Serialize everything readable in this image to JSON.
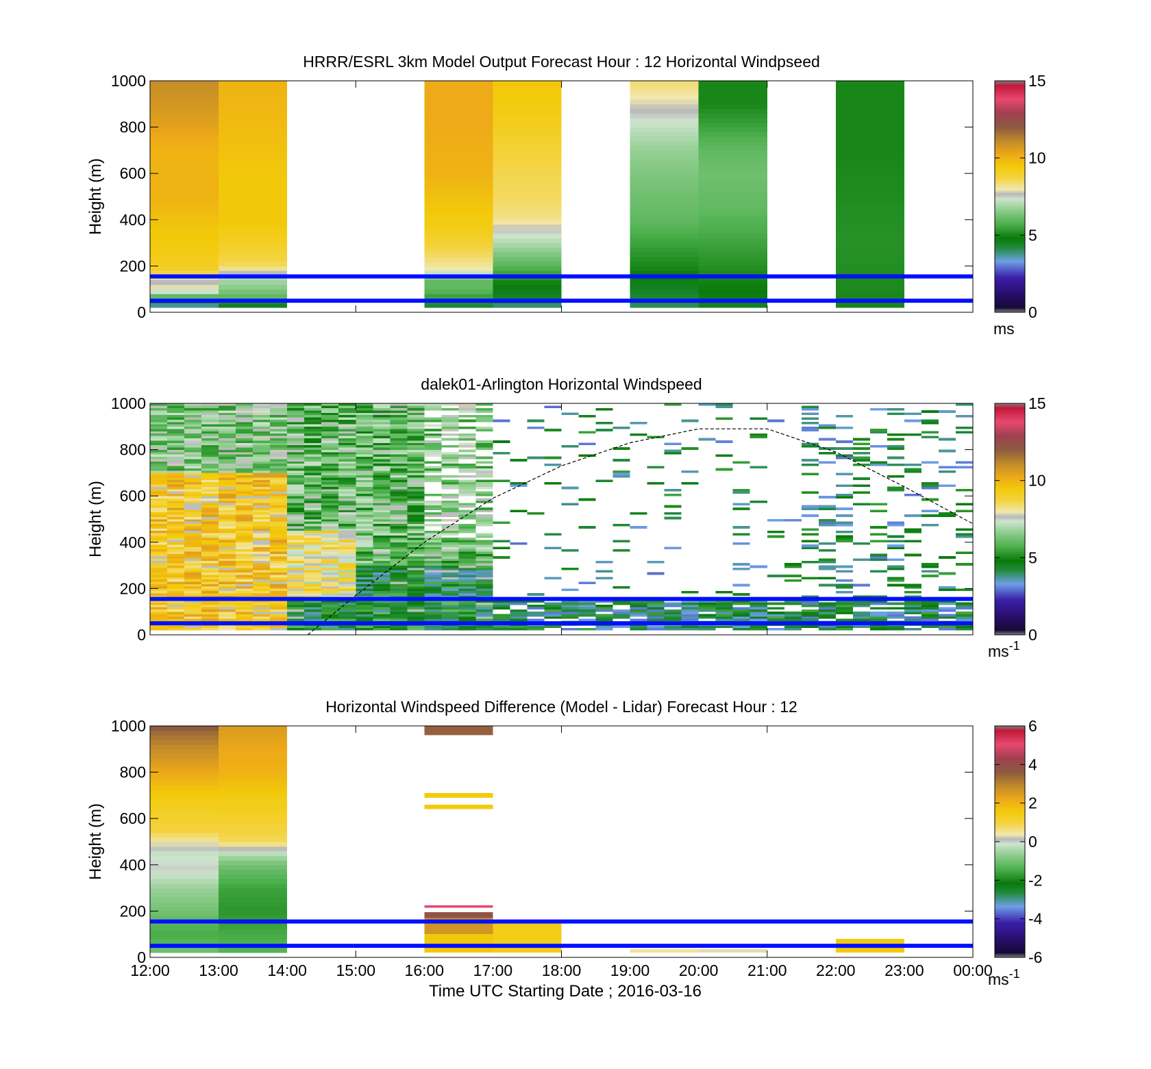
{
  "figure": {
    "xlabel": "Time UTC  Starting Date ; 2016-03-16",
    "x_ticks": [
      "12:00",
      "13:00",
      "14:00",
      "15:00",
      "16:00",
      "17:00",
      "18:00",
      "19:00",
      "20:00",
      "21:00",
      "22:00",
      "23:00",
      "00:00"
    ]
  },
  "chart_data": [
    {
      "type": "heatmap",
      "title": "HRRR/ESRL 3km Model Output   Forecast Hour : 12 Horizontal Windpseed",
      "ylabel": "Height (m)",
      "xlim": [
        12,
        24
      ],
      "ylim": [
        0,
        1000
      ],
      "y_ticks": [
        "0",
        "200",
        "400",
        "600",
        "800",
        "1000"
      ],
      "colorbar": {
        "min": 0,
        "max": 15,
        "ticks": [
          "0",
          "5",
          "10",
          "15"
        ],
        "unit": "ms"
      },
      "reference_lines_m": [
        50,
        155
      ],
      "columns": [
        {
          "t0": 12,
          "t1": 13,
          "profile": [
            [
              20,
              4
            ],
            [
              40,
              3.5
            ],
            [
              70,
              6
            ],
            [
              100,
              8
            ],
            [
              140,
              7.5
            ],
            [
              180,
              9
            ],
            [
              250,
              9.3
            ],
            [
              350,
              9.5
            ],
            [
              500,
              10
            ],
            [
              700,
              10
            ],
            [
              850,
              10.6
            ],
            [
              1000,
              11
            ]
          ]
        },
        {
          "t0": 13,
          "t1": 14,
          "profile": [
            [
              20,
              4
            ],
            [
              40,
              5
            ],
            [
              70,
              6
            ],
            [
              100,
              6.5
            ],
            [
              150,
              7
            ],
            [
              200,
              8.5
            ],
            [
              280,
              9
            ],
            [
              400,
              9.5
            ],
            [
              600,
              9.5
            ],
            [
              800,
              9.8
            ],
            [
              1000,
              10
            ]
          ]
        },
        {
          "t0": 16,
          "t1": 17,
          "profile": [
            [
              20,
              3.5
            ],
            [
              40,
              5
            ],
            [
              70,
              5.5
            ],
            [
              100,
              6
            ],
            [
              140,
              6
            ],
            [
              175,
              7.5
            ],
            [
              190,
              8
            ],
            [
              250,
              8.5
            ],
            [
              350,
              9.2
            ],
            [
              600,
              10
            ],
            [
              850,
              10.2
            ],
            [
              1000,
              10.2
            ]
          ]
        },
        {
          "t0": 17,
          "t1": 18,
          "profile": [
            [
              20,
              3.8
            ],
            [
              70,
              4.5
            ],
            [
              120,
              4.8
            ],
            [
              170,
              5.5
            ],
            [
              230,
              6.2
            ],
            [
              300,
              7
            ],
            [
              350,
              7.5
            ],
            [
              400,
              8.2
            ],
            [
              500,
              8.5
            ],
            [
              600,
              8.6
            ],
            [
              750,
              9
            ],
            [
              850,
              9.3
            ],
            [
              1000,
              9.5
            ]
          ]
        },
        {
          "t0": 19,
          "t1": 20,
          "profile": [
            [
              20,
              4
            ],
            [
              100,
              4.5
            ],
            [
              200,
              5
            ],
            [
              300,
              5.5
            ],
            [
              400,
              6
            ],
            [
              550,
              6.3
            ],
            [
              700,
              6.7
            ],
            [
              800,
              7.2
            ],
            [
              900,
              7.8
            ],
            [
              1000,
              8.4
            ]
          ]
        },
        {
          "t0": 20,
          "t1": 21,
          "profile": [
            [
              20,
              4.5
            ],
            [
              150,
              5
            ],
            [
              300,
              5.5
            ],
            [
              450,
              6
            ],
            [
              600,
              6.2
            ],
            [
              700,
              6
            ],
            [
              800,
              5.5
            ],
            [
              900,
              5
            ],
            [
              1000,
              5
            ]
          ]
        },
        {
          "t0": 22,
          "t1": 23,
          "profile": [
            [
              20,
              5
            ],
            [
              300,
              5.2
            ],
            [
              500,
              5.1
            ],
            [
              700,
              5
            ],
            [
              1000,
              5
            ]
          ]
        }
      ]
    },
    {
      "type": "heatmap",
      "title": "dalek01-Arlington  Horizontal Windspeed",
      "ylabel": "Height (m)",
      "xlim": [
        12,
        24
      ],
      "ylim": [
        0,
        1000
      ],
      "y_ticks": [
        "0",
        "200",
        "400",
        "600",
        "800",
        "1000"
      ],
      "colorbar": {
        "min": 0,
        "max": 15,
        "ticks": [
          "0",
          "5",
          "10",
          "15"
        ],
        "unit": "ms",
        "unit_exponent": "-1"
      },
      "reference_lines_m": [
        50,
        155
      ],
      "boundary_layer_curve": {
        "style": "dashed",
        "x": [
          14.3,
          15,
          16,
          17,
          18,
          19,
          20,
          21,
          22,
          23,
          24
        ],
        "y": [
          0,
          170,
          400,
          590,
          730,
          830,
          890,
          890,
          790,
          640,
          480
        ]
      },
      "observations": "Lidar windspeed retrievals roughly 12:00-17:00 continuous from 0-1000 m (about 8-10.5 ms-1 below 700 m before 14:00, decreasing to 4-7 ms-1 by 15:00-17:00); after 17:00 mostly below 150 m (about 3-5 ms-1) with scattered returns up to 1000 m."
    },
    {
      "type": "heatmap",
      "title": "Horizontal Windspeed Difference (Model - Lidar) Forecast Hour : 12",
      "ylabel": "Height (m)",
      "xlim": [
        12,
        24
      ],
      "ylim": [
        0,
        1000
      ],
      "y_ticks": [
        "0",
        "200",
        "400",
        "600",
        "800",
        "1000"
      ],
      "colorbar": {
        "min": -6,
        "max": 6,
        "ticks": [
          "-6",
          "-4",
          "-2",
          "0",
          "2",
          "4",
          "6"
        ],
        "unit": "ms",
        "unit_exponent": "-1"
      },
      "reference_lines_m": [
        50,
        155
      ],
      "columns": [
        {
          "t0": 12,
          "t1": 13,
          "profile": [
            [
              20,
              -1
            ],
            [
              100,
              -1.5
            ],
            [
              200,
              -1
            ],
            [
              300,
              -0.6
            ],
            [
              380,
              0
            ],
            [
              450,
              -0.2
            ],
            [
              550,
              1
            ],
            [
              700,
              1.5
            ],
            [
              800,
              2.2
            ],
            [
              900,
              2.8
            ],
            [
              980,
              3.4
            ],
            [
              1000,
              3.8
            ]
          ]
        },
        {
          "t0": 13,
          "t1": 14,
          "profile": [
            [
              20,
              -1.3
            ],
            [
              100,
              -1.5
            ],
            [
              200,
              -1.8
            ],
            [
              300,
              -1.6
            ],
            [
              400,
              -1
            ],
            [
              450,
              -0.3
            ],
            [
              500,
              0.8
            ],
            [
              600,
              1.2
            ],
            [
              700,
              1.5
            ],
            [
              800,
              2
            ],
            [
              900,
              2.2
            ],
            [
              1000,
              2.5
            ]
          ]
        }
      ],
      "segments": [
        {
          "t0": 16,
          "t1": 17,
          "h0": 960,
          "h1": 1000,
          "v": 3.5
        },
        {
          "t0": 16,
          "t1": 17,
          "h0": 690,
          "h1": 710,
          "v": 1.5
        },
        {
          "t0": 16,
          "t1": 17,
          "h0": 640,
          "h1": 660,
          "v": 1.5
        },
        {
          "t0": 16,
          "t1": 17,
          "h0": 215,
          "h1": 225,
          "v": 5
        },
        {
          "t0": 16,
          "t1": 17,
          "h0": 170,
          "h1": 195,
          "v": 3.8
        },
        {
          "t0": 16,
          "t1": 17,
          "h0": 100,
          "h1": 170,
          "v": 2.6
        },
        {
          "t0": 16,
          "t1": 17,
          "h0": 20,
          "h1": 100,
          "v": 1.6
        },
        {
          "t0": 17,
          "t1": 18,
          "h0": 20,
          "h1": 150,
          "v": 1.4
        },
        {
          "t0": 19,
          "t1": 20,
          "h0": 20,
          "h1": 35,
          "v": 0.5
        },
        {
          "t0": 20,
          "t1": 21,
          "h0": 20,
          "h1": 35,
          "v": 0.3
        },
        {
          "t0": 22,
          "t1": 23,
          "h0": 20,
          "h1": 80,
          "v": 1.5
        }
      ]
    }
  ]
}
